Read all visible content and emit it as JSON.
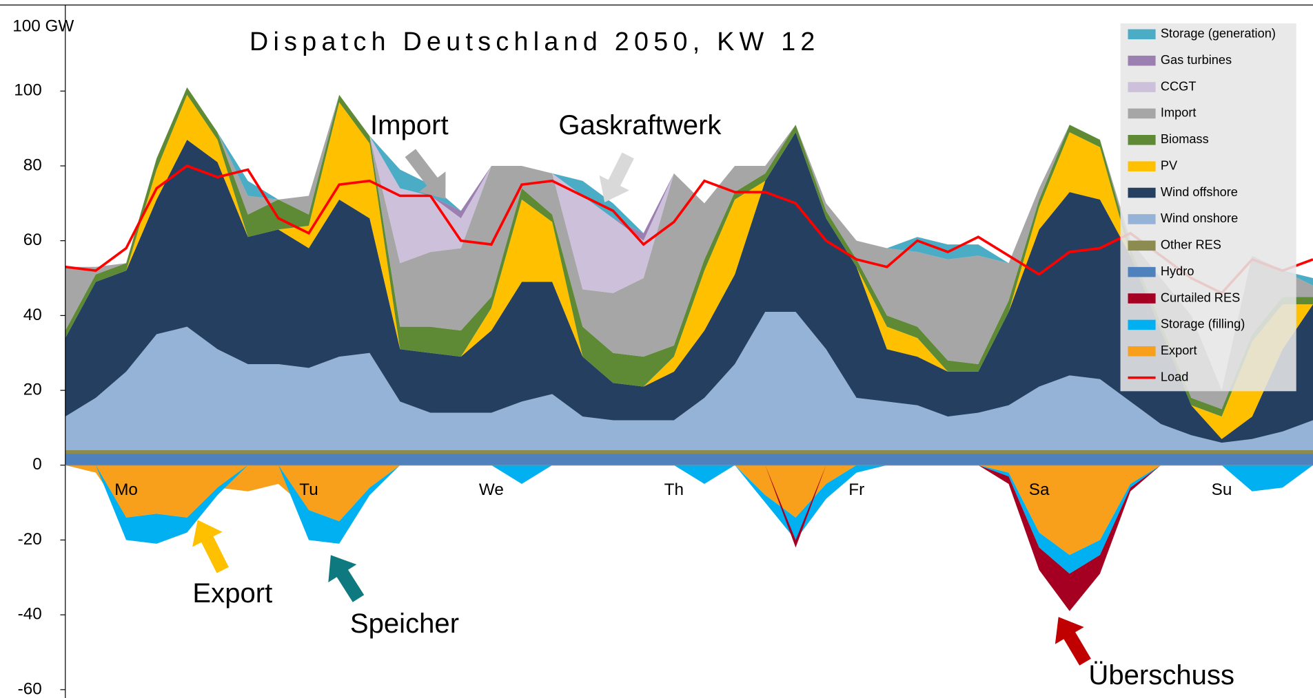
{
  "chart_data": {
    "type": "area",
    "title": "Dispatch Deutschland 2050, KW 12",
    "y_label": "100 GW",
    "ylim": [
      -60,
      123
    ],
    "yticks": [
      -60,
      -40,
      -20,
      0,
      20,
      40,
      60,
      80,
      100
    ],
    "legend": "top-right",
    "categories": [
      null,
      null,
      "Mo",
      null,
      null,
      null,
      null,
      null,
      "Tu",
      null,
      null,
      null,
      null,
      null,
      "We",
      null,
      null,
      null,
      null,
      null,
      "Th",
      null,
      null,
      null,
      null,
      null,
      "Fr",
      null,
      null,
      null,
      null,
      null,
      "Sa",
      null,
      null,
      null,
      null,
      null,
      "Su",
      null,
      null,
      null
    ],
    "annotations": [
      "Import",
      "Gaskraftwerk",
      "Export",
      "Speicher",
      "Überschuss"
    ],
    "series": [
      {
        "name": "Storage (generation)",
        "color": "#4bacc6",
        "values": [
          0,
          0,
          0,
          0,
          0,
          0,
          4,
          0,
          0,
          0,
          0,
          5,
          3,
          0,
          0,
          0,
          0,
          4,
          4,
          0,
          0,
          0,
          0,
          0,
          0,
          0,
          0,
          0,
          4,
          4,
          3,
          0,
          0,
          0,
          0,
          0,
          0,
          0,
          0,
          0,
          0,
          2
        ]
      },
      {
        "name": "Gas turbines",
        "color": "#9b7fb0",
        "values": [
          0,
          0,
          0,
          0,
          0,
          0,
          0,
          0,
          0,
          0,
          0,
          0,
          0,
          2,
          0,
          0,
          0,
          0,
          0,
          2,
          0,
          0,
          0,
          0,
          0,
          0,
          0,
          0,
          0,
          0,
          0,
          0,
          0,
          0,
          0,
          0,
          0,
          0,
          0,
          0,
          0,
          0
        ]
      },
      {
        "name": "CCGT",
        "color": "#ccc0da",
        "values": [
          0,
          0,
          0,
          0,
          0,
          0,
          0,
          0,
          0,
          0,
          0,
          20,
          15,
          8,
          0,
          0,
          0,
          25,
          20,
          10,
          0,
          0,
          0,
          0,
          0,
          0,
          0,
          0,
          0,
          0,
          0,
          0,
          0,
          0,
          0,
          0,
          0,
          0,
          0,
          0,
          0,
          0
        ]
      },
      {
        "name": "Import",
        "color": "#a6a6a6",
        "values": [
          17,
          2,
          0,
          0,
          0,
          0,
          5,
          0,
          5,
          0,
          0,
          17,
          20,
          22,
          35,
          6,
          11,
          10,
          16,
          21,
          46,
          15,
          7,
          2,
          0,
          2,
          5,
          18,
          20,
          27,
          29,
          10,
          3,
          0,
          0,
          2,
          12,
          22,
          5,
          21,
          7,
          3
        ]
      },
      {
        "name": "Biomass",
        "color": "#5e8a35",
        "values": [
          2,
          2,
          2,
          3,
          2,
          2,
          6,
          8,
          3,
          2,
          2,
          6,
          7,
          7,
          3,
          3,
          2,
          8,
          8,
          8,
          3,
          3,
          2,
          2,
          2,
          2,
          2,
          3,
          3,
          3,
          2,
          3,
          2,
          2,
          2,
          2,
          2,
          2,
          2,
          2,
          2,
          2
        ]
      },
      {
        "name": "PV",
        "color": "#ffc000",
        "values": [
          0,
          0,
          0,
          8,
          12,
          6,
          0,
          0,
          6,
          26,
          20,
          0,
          0,
          0,
          6,
          22,
          16,
          0,
          0,
          0,
          4,
          16,
          20,
          0,
          0,
          0,
          0,
          6,
          5,
          0,
          0,
          0,
          6,
          16,
          14,
          0,
          0,
          0,
          6,
          20,
          12,
          0
        ]
      },
      {
        "name": "Wind offshore",
        "color": "#243f60",
        "values": [
          21,
          31,
          27,
          36,
          50,
          50,
          34,
          36,
          32,
          42,
          36,
          14,
          16,
          15,
          22,
          32,
          30,
          16,
          10,
          9,
          13,
          18,
          24,
          35,
          48,
          35,
          35,
          14,
          13,
          12,
          11,
          25,
          42,
          49,
          48,
          39,
          25,
          8,
          1,
          6,
          22,
          31
        ]
      },
      {
        "name": "Wind onshore",
        "color": "#95b3d7",
        "values": [
          9,
          14,
          21,
          31,
          33,
          27,
          23,
          23,
          22,
          25,
          26,
          13,
          10,
          10,
          10,
          13,
          15,
          9,
          8,
          8,
          8,
          14,
          23,
          37,
          37,
          27,
          14,
          13,
          12,
          9,
          10,
          12,
          17,
          20,
          19,
          13,
          7,
          4,
          2,
          3,
          5,
          8
        ]
      },
      {
        "name": "Other RES",
        "color": "#8c8c50",
        "values": [
          1,
          1,
          1,
          1,
          1,
          1,
          1,
          1,
          1,
          1,
          1,
          1,
          1,
          1,
          1,
          1,
          1,
          1,
          1,
          1,
          1,
          1,
          1,
          1,
          1,
          1,
          1,
          1,
          1,
          1,
          1,
          1,
          1,
          1,
          1,
          1,
          1,
          1,
          1,
          1,
          1,
          1
        ]
      },
      {
        "name": "Hydro",
        "color": "#4f81bd",
        "values": [
          3,
          3,
          3,
          3,
          3,
          3,
          3,
          3,
          3,
          3,
          3,
          3,
          3,
          3,
          3,
          3,
          3,
          3,
          3,
          3,
          3,
          3,
          3,
          3,
          3,
          3,
          3,
          3,
          3,
          3,
          3,
          3,
          3,
          3,
          3,
          3,
          3,
          3,
          3,
          3,
          3,
          3
        ]
      },
      {
        "name": "Curtailed RES",
        "color": "#a50021",
        "values": [
          0,
          0,
          0,
          0,
          0,
          0,
          0,
          0,
          0,
          0,
          0,
          0,
          0,
          0,
          0,
          0,
          0,
          0,
          0,
          0,
          0,
          0,
          0,
          0,
          -2,
          0,
          0,
          0,
          0,
          0,
          0,
          -2,
          -6,
          -10,
          -5,
          -1,
          0,
          0,
          0,
          0,
          0,
          0
        ]
      },
      {
        "name": "Storage (filling)",
        "color": "#00b0f0",
        "values": [
          0,
          0,
          -6,
          -8,
          -4,
          -2,
          0,
          0,
          -8,
          -6,
          -2,
          0,
          0,
          0,
          0,
          -5,
          0,
          0,
          0,
          0,
          0,
          -5,
          0,
          -2,
          -6,
          -4,
          -2,
          0,
          0,
          0,
          0,
          -1,
          -4,
          -5,
          -4,
          -1,
          0,
          0,
          0,
          -7,
          -6,
          0
        ]
      },
      {
        "name": "Export",
        "color": "#f8a01c",
        "values": [
          0,
          -2,
          -14,
          -13,
          -14,
          -6,
          -7,
          -5,
          -12,
          -15,
          -6,
          0,
          0,
          0,
          0,
          0,
          0,
          0,
          0,
          0,
          0,
          0,
          0,
          -8,
          -14,
          -5,
          0,
          0,
          0,
          0,
          0,
          -2,
          -18,
          -24,
          -20,
          -5,
          0,
          0,
          0,
          0,
          0,
          0
        ]
      },
      {
        "name": "Load",
        "type": "line",
        "color": "#ff0000",
        "values": [
          53,
          52,
          58,
          74,
          80,
          77,
          79,
          66,
          62,
          75,
          76,
          72,
          72,
          60,
          59,
          75,
          76,
          72,
          68,
          59,
          65,
          76,
          73,
          73,
          70,
          60,
          55,
          53,
          60,
          57,
          61,
          56,
          51,
          57,
          58,
          62,
          56,
          50,
          46,
          55,
          52,
          55
        ]
      }
    ]
  }
}
